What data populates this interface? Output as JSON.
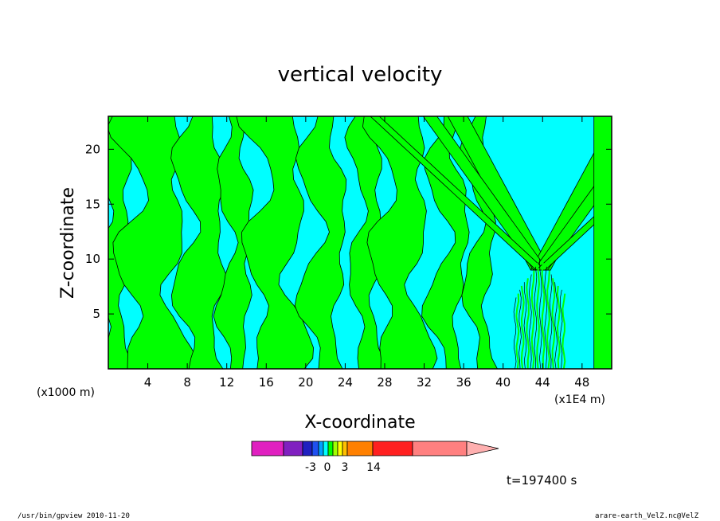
{
  "chart_data": {
    "type": "heatmap",
    "title": "vertical velocity",
    "xlabel": "X-coordinate",
    "ylabel": "Z-coordinate",
    "x_unit_left": "(x1000 m)",
    "x_unit_right": "(x1E4 m)",
    "xlim": [
      0,
      51
    ],
    "ylim": [
      0,
      23
    ],
    "x_ticks": [
      "4",
      "8",
      "12",
      "16",
      "20",
      "24",
      "28",
      "32",
      "36",
      "40",
      "44",
      "48"
    ],
    "y_ticks": [
      "5",
      "10",
      "15",
      "20"
    ],
    "time_label": "t=197400 s",
    "colorbar": {
      "tick_labels": [
        "-3",
        "0",
        "3",
        "14"
      ],
      "colors": [
        "#e020c0",
        "#8020c0",
        "#2020c0",
        "#2050f0",
        "#00a0ff",
        "#00ffff",
        "#00ff00",
        "#a0ff00",
        "#ffff00",
        "#ffc000",
        "#ff8000",
        "#ff2020",
        "#ff8080",
        "#ffb0b0"
      ]
    },
    "fields": [
      {
        "name": "negative",
        "color": "#00ffff"
      },
      {
        "name": "positive",
        "color": "#00ff00"
      }
    ]
  },
  "footer": {
    "left": "/usr/bin/gpview  2010-11-20",
    "right": "arare-earth_VelZ.nc@VelZ"
  }
}
